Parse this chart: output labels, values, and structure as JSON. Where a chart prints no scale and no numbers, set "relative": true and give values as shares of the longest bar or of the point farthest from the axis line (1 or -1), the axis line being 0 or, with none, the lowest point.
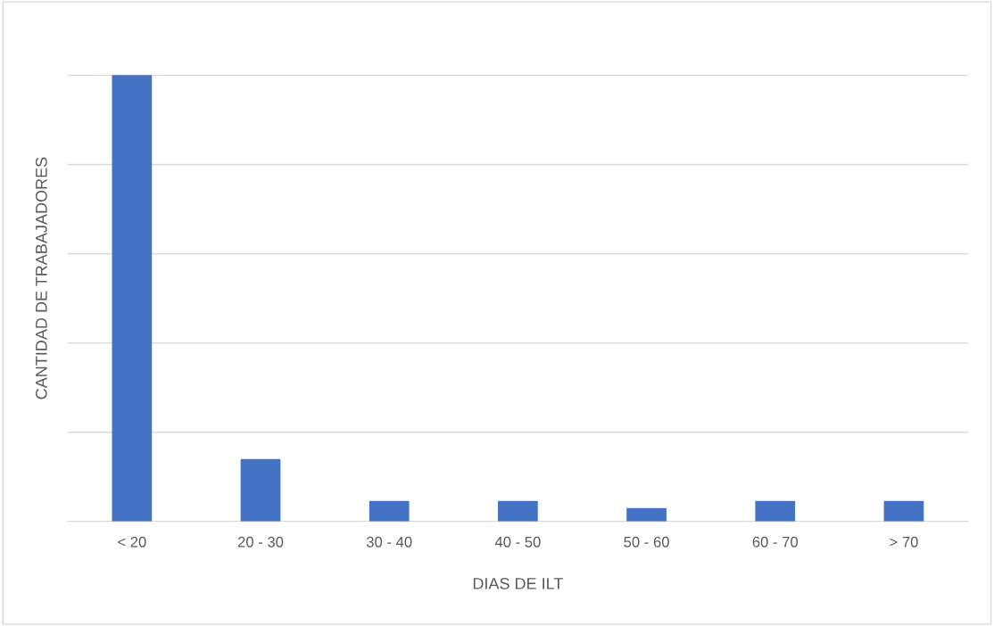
{
  "chart_data": {
    "type": "bar",
    "xlabel": "DIAS DE ILT",
    "ylabel": "CANTIDAD DE TRABAJADORES",
    "categories": [
      "< 20",
      "20 - 30",
      "30 - 40",
      "40 - 50",
      "50 - 60",
      "60 - 70",
      "> 70"
    ],
    "values": [
      1,
      0.14,
      0.046,
      0.046,
      0.03,
      0.046,
      0.046
    ],
    "color": "#4472c4",
    "relative": true,
    "grid": "y",
    "legend": false
  }
}
